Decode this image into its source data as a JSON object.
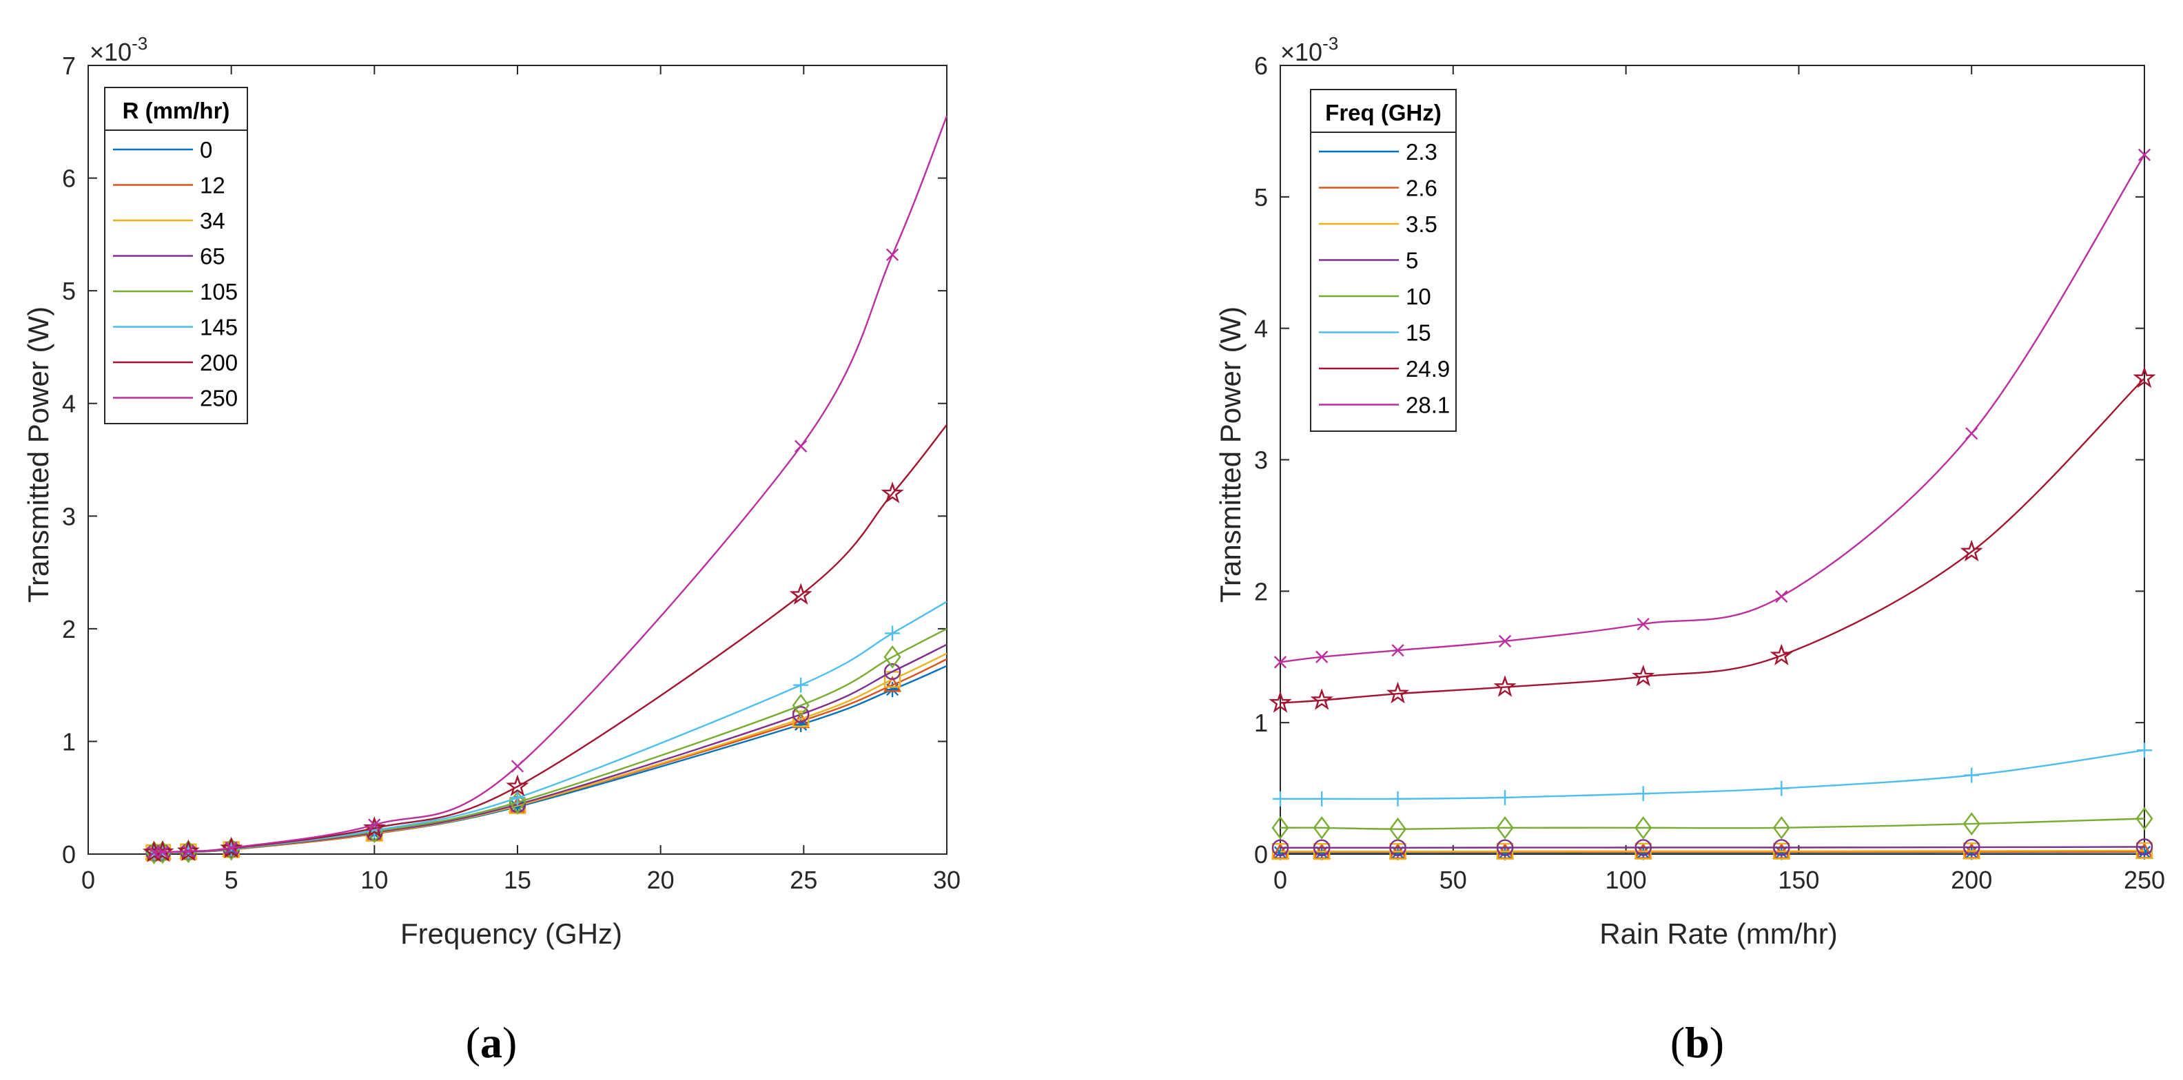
{
  "chart_data": [
    {
      "type": "line",
      "panel_label": "a",
      "xlabel": "Frequency (GHz)",
      "ylabel": "Transmitted Power (W)",
      "xlim": [
        0,
        30
      ],
      "ylim": [
        0,
        7
      ],
      "xticks": [
        0,
        5,
        10,
        15,
        20,
        25,
        30
      ],
      "yticks": [
        0,
        1,
        2,
        3,
        4,
        5,
        6,
        7
      ],
      "y_exponent_base": "×10",
      "y_exponent_power": "-3",
      "legend_title": "R (mm/hr)",
      "legend_position": "top-left",
      "x": [
        2.3,
        2.6,
        3.5,
        5,
        10,
        15,
        24.9,
        28.1
      ],
      "x_curve_end": 30,
      "series": [
        {
          "name": "0",
          "color": "#0072BD",
          "marker": "asterisk",
          "values": [
            0.012,
            0.015,
            0.02,
            0.04,
            0.18,
            0.42,
            1.15,
            1.46
          ],
          "end": 1.67
        },
        {
          "name": "12",
          "color": "#D95319",
          "marker": "triangle",
          "values": [
            0.012,
            0.015,
            0.02,
            0.04,
            0.18,
            0.43,
            1.18,
            1.5
          ],
          "end": 1.73
        },
        {
          "name": "34",
          "color": "#EDB120",
          "marker": "square",
          "values": [
            0.012,
            0.015,
            0.02,
            0.04,
            0.185,
            0.43,
            1.2,
            1.55
          ],
          "end": 1.78
        },
        {
          "name": "65",
          "color": "#7E2F8E",
          "marker": "circle",
          "values": [
            0.012,
            0.015,
            0.02,
            0.042,
            0.19,
            0.44,
            1.24,
            1.62
          ],
          "end": 1.86
        },
        {
          "name": "105",
          "color": "#77AC30",
          "marker": "diamond",
          "values": [
            0.013,
            0.016,
            0.022,
            0.044,
            0.2,
            0.46,
            1.32,
            1.75
          ],
          "end": 2.0
        },
        {
          "name": "145",
          "color": "#4DBEEE",
          "marker": "plus",
          "values": [
            0.013,
            0.016,
            0.022,
            0.046,
            0.21,
            0.5,
            1.5,
            1.96
          ],
          "end": 2.24
        },
        {
          "name": "200",
          "color": "#A2142F",
          "marker": "pentagram",
          "values": [
            0.014,
            0.017,
            0.024,
            0.05,
            0.23,
            0.6,
            2.3,
            3.2
          ],
          "end": 3.81
        },
        {
          "name": "250",
          "color": "#BB2E9E",
          "marker": "x",
          "values": [
            0.015,
            0.018,
            0.026,
            0.055,
            0.26,
            0.78,
            3.62,
            5.32
          ],
          "end": 6.55
        }
      ]
    },
    {
      "type": "line",
      "panel_label": "b",
      "xlabel": "Rain Rate (mm/hr)",
      "ylabel": "Transmitted Power (W)",
      "xlim": [
        0,
        250
      ],
      "ylim": [
        0,
        6
      ],
      "xticks": [
        0,
        50,
        100,
        150,
        200,
        250
      ],
      "yticks": [
        0,
        1,
        2,
        3,
        4,
        5,
        6
      ],
      "y_exponent_base": "×10",
      "y_exponent_power": "-3",
      "legend_title": "Freq (GHz)",
      "legend_position": "top-left",
      "x": [
        0,
        12,
        34,
        65,
        105,
        145,
        200,
        250
      ],
      "series": [
        {
          "name": "2.3",
          "color": "#0072BD",
          "marker": "asterisk",
          "values": [
            0.012,
            0.012,
            0.012,
            0.012,
            0.013,
            0.013,
            0.014,
            0.015
          ]
        },
        {
          "name": "2.6",
          "color": "#D95319",
          "marker": "triangle",
          "values": [
            0.015,
            0.015,
            0.015,
            0.015,
            0.016,
            0.016,
            0.017,
            0.018
          ]
        },
        {
          "name": "3.5",
          "color": "#EDB120",
          "marker": "square",
          "values": [
            0.02,
            0.02,
            0.02,
            0.021,
            0.022,
            0.022,
            0.024,
            0.026
          ]
        },
        {
          "name": "5",
          "color": "#7E2F8E",
          "marker": "circle",
          "values": [
            0.048,
            0.048,
            0.048,
            0.049,
            0.05,
            0.05,
            0.052,
            0.055
          ]
        },
        {
          "name": "10",
          "color": "#77AC30",
          "marker": "diamond",
          "values": [
            0.2,
            0.2,
            0.19,
            0.2,
            0.2,
            0.2,
            0.23,
            0.27
          ]
        },
        {
          "name": "15",
          "color": "#4DBEEE",
          "marker": "plus",
          "values": [
            0.42,
            0.42,
            0.42,
            0.43,
            0.46,
            0.5,
            0.6,
            0.79
          ]
        },
        {
          "name": "24.9",
          "color": "#A2142F",
          "marker": "pentagram",
          "values": [
            1.15,
            1.17,
            1.22,
            1.27,
            1.35,
            1.51,
            2.3,
            3.62
          ]
        },
        {
          "name": "28.1",
          "color": "#BB2E9E",
          "marker": "x",
          "values": [
            1.46,
            1.5,
            1.55,
            1.62,
            1.75,
            1.96,
            3.2,
            5.32
          ]
        }
      ]
    }
  ]
}
